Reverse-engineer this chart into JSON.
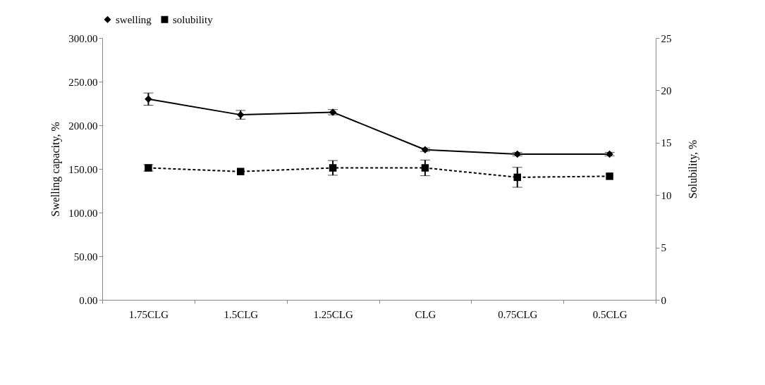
{
  "chart_data": {
    "type": "line",
    "ylabel": "Swelling capacity, %",
    "y2label": "Solubility, %",
    "categories": [
      "1.75CLG",
      "1.5CLG",
      "1.25CLG",
      "CLG",
      "0.75CLG",
      "0.5CLG"
    ],
    "series": [
      {
        "name": "swelling",
        "color": "#000000",
        "marker": "diamond",
        "line_style": "solid",
        "values": [
          230,
          212,
          215,
          172,
          167,
          167
        ],
        "errors": [
          7,
          5,
          3,
          2,
          2,
          2
        ]
      },
      {
        "name": "solubility",
        "color": "#000000",
        "marker": "square",
        "line_style": "dashed",
        "axis": "y2",
        "values": [
          12.6,
          12.25,
          12.6,
          12.6,
          11.7,
          11.8
        ],
        "errors": [
          0.3,
          null,
          0.7,
          0.75,
          0.95,
          null
        ]
      }
    ],
    "ylim": [
      0,
      300
    ],
    "yticks": [
      {
        "value": 0,
        "label": "0.00"
      },
      {
        "value": 50,
        "label": "50.00"
      },
      {
        "value": 100,
        "label": "100.00"
      },
      {
        "value": 150,
        "label": "150.00"
      },
      {
        "value": 200,
        "label": "200.00"
      },
      {
        "value": 250,
        "label": "250.00"
      },
      {
        "value": 300,
        "label": "300.00"
      }
    ],
    "y2lim": [
      0,
      25
    ],
    "y2ticks": [
      0,
      5,
      10,
      15,
      20,
      25
    ],
    "grid": false,
    "legend": "top"
  }
}
